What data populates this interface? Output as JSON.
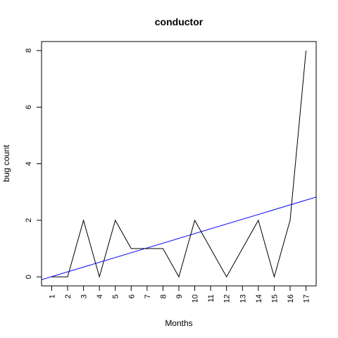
{
  "chart_data": {
    "type": "line",
    "title": "conductor",
    "xlabel": "Months",
    "ylabel": "bug count",
    "x": [
      1,
      2,
      3,
      4,
      5,
      6,
      7,
      8,
      9,
      10,
      11,
      12,
      13,
      14,
      15,
      16,
      17
    ],
    "x_tick_labels": [
      "1",
      "2",
      "3",
      "4",
      "5",
      "6",
      "7",
      "8",
      "9",
      "10",
      "11",
      "12",
      "13",
      "14",
      "15",
      "16",
      "17"
    ],
    "y_ticks": [
      0,
      2,
      4,
      6,
      8
    ],
    "y_tick_labels": [
      "0",
      "2",
      "4",
      "6",
      "8"
    ],
    "xlim": [
      0.36,
      17.64
    ],
    "ylim": [
      -0.32,
      8.32
    ],
    "grid": false,
    "series": [
      {
        "values": [
          0,
          0,
          2,
          0,
          2,
          1,
          1,
          1,
          0,
          2,
          1,
          0,
          1,
          2,
          0,
          2,
          8
        ],
        "color": "#000000"
      }
    ],
    "trend_line": {
      "color": "#0000ff",
      "intercept": -0.1618,
      "slope": 0.1691
    }
  }
}
